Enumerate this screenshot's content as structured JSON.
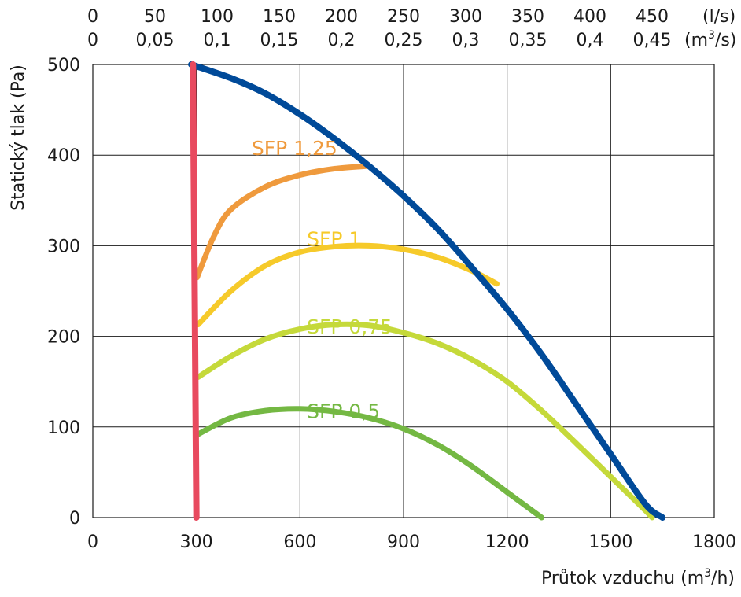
{
  "chart_data": {
    "type": "line",
    "xlabel": "Průtok vzduchu (m³/h)",
    "xlabel_main": "Průtok vzduchu (m",
    "xlabel_sup": "3",
    "xlabel_tail": "/h)",
    "ylabel": "Statický tlak (Pa)",
    "xlim": [
      0,
      1800
    ],
    "ylim": [
      0,
      500
    ],
    "grid": true,
    "x_ticks": [
      0,
      300,
      600,
      900,
      1200,
      1500,
      1800
    ],
    "x_tick_labels": [
      "0",
      "300",
      "600",
      "900",
      "1200",
      "1500",
      "1800"
    ],
    "y_ticks": [
      0,
      100,
      200,
      300,
      400,
      500
    ],
    "y_tick_labels": [
      "0",
      "100",
      "200",
      "300",
      "400",
      "500"
    ],
    "top_axis_ls": {
      "unit": "(l/s)",
      "ticks": [
        0,
        50,
        100,
        150,
        200,
        250,
        300,
        350,
        400,
        450
      ],
      "labels": [
        "0",
        "50",
        "100",
        "150",
        "200",
        "250",
        "300",
        "350",
        "400",
        "450"
      ]
    },
    "top_axis_m3s": {
      "unit": "(m³/s)",
      "unit_main": "(m",
      "unit_sup": "3",
      "unit_tail": "/s)",
      "ticks": [
        0,
        0.05,
        0.1,
        0.15,
        0.2,
        0.25,
        0.3,
        0.35,
        0.4,
        0.45
      ],
      "labels": [
        "0",
        "0,05",
        "0,1",
        "0,15",
        "0,2",
        "0,25",
        "0,3",
        "0,35",
        "0,4",
        "0,45"
      ]
    },
    "series": [
      {
        "key": "max",
        "color": "#004a99",
        "values": [
          [
            285,
            500
          ],
          [
            400,
            485
          ],
          [
            500,
            468
          ],
          [
            600,
            445
          ],
          [
            700,
            418
          ],
          [
            800,
            388
          ],
          [
            900,
            355
          ],
          [
            1000,
            318
          ],
          [
            1100,
            275
          ],
          [
            1200,
            230
          ],
          [
            1300,
            180
          ],
          [
            1400,
            125
          ],
          [
            1500,
            70
          ],
          [
            1600,
            15
          ],
          [
            1650,
            0
          ]
        ]
      },
      {
        "key": "min",
        "color": "#e84a5f",
        "values": [
          [
            290,
            500
          ],
          [
            300,
            0
          ]
        ]
      },
      {
        "name": "SFP 1,25",
        "color": "#ef9a3d",
        "label_at": [
          460,
          400
        ],
        "values": [
          [
            302,
            265
          ],
          [
            350,
            310
          ],
          [
            400,
            340
          ],
          [
            500,
            365
          ],
          [
            600,
            378
          ],
          [
            700,
            385
          ],
          [
            800,
            388
          ]
        ]
      },
      {
        "name": "SFP 1",
        "color": "#f6ca2a",
        "label_at": [
          620,
          300
        ],
        "values": [
          [
            305,
            213
          ],
          [
            400,
            250
          ],
          [
            500,
            278
          ],
          [
            600,
            293
          ],
          [
            700,
            299
          ],
          [
            800,
            300
          ],
          [
            900,
            296
          ],
          [
            1000,
            287
          ],
          [
            1100,
            272
          ],
          [
            1170,
            258
          ]
        ]
      },
      {
        "name": "SFP 0,75",
        "color": "#c5d93a",
        "label_at": [
          620,
          203
        ],
        "values": [
          [
            305,
            155
          ],
          [
            400,
            178
          ],
          [
            500,
            197
          ],
          [
            600,
            208
          ],
          [
            700,
            213
          ],
          [
            800,
            212
          ],
          [
            900,
            204
          ],
          [
            1000,
            192
          ],
          [
            1100,
            174
          ],
          [
            1200,
            150
          ],
          [
            1300,
            118
          ],
          [
            1400,
            82
          ],
          [
            1500,
            45
          ],
          [
            1600,
            8
          ],
          [
            1620,
            0
          ]
        ]
      },
      {
        "name": "SFP 0,5",
        "color": "#74b843",
        "label_at": [
          620,
          110
        ],
        "values": [
          [
            305,
            92
          ],
          [
            400,
            110
          ],
          [
            500,
            118
          ],
          [
            600,
            120
          ],
          [
            700,
            117
          ],
          [
            800,
            110
          ],
          [
            900,
            98
          ],
          [
            1000,
            80
          ],
          [
            1100,
            56
          ],
          [
            1200,
            28
          ],
          [
            1300,
            0
          ]
        ]
      }
    ]
  }
}
